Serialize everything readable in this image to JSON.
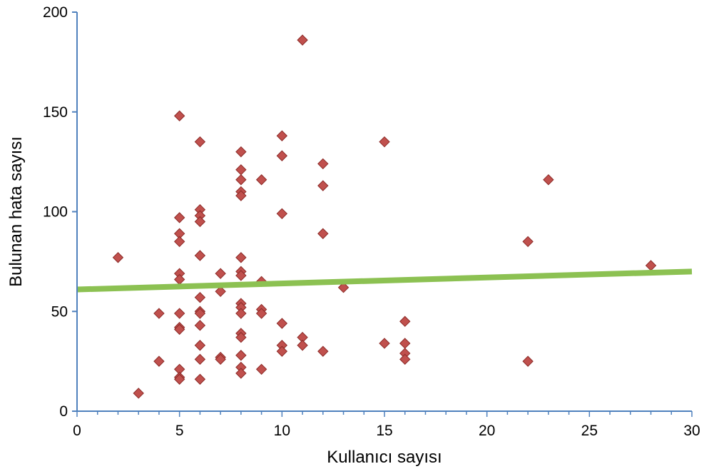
{
  "chart_data": {
    "type": "scatter",
    "title": "",
    "xlabel": "Kullanıcı sayısı",
    "ylabel": "Bulunan hata sayısı",
    "xlim": [
      0,
      30
    ],
    "ylim": [
      0,
      200
    ],
    "x_ticks": [
      0,
      5,
      10,
      15,
      20,
      25,
      30
    ],
    "y_ticks": [
      0,
      50,
      100,
      150,
      200
    ],
    "grid": false,
    "legend": "none",
    "marker": "diamond",
    "colors": {
      "axis": "#4f81bd",
      "marker_fill": "#c0504d",
      "marker_stroke": "#8b2a27",
      "trendline": "#8cc152"
    },
    "points": [
      [
        2,
        77
      ],
      [
        3,
        9
      ],
      [
        4,
        49
      ],
      [
        4,
        25
      ],
      [
        5,
        148
      ],
      [
        5,
        97
      ],
      [
        5,
        89
      ],
      [
        5,
        85
      ],
      [
        5,
        69
      ],
      [
        5,
        66
      ],
      [
        5,
        49
      ],
      [
        5,
        42
      ],
      [
        5,
        41
      ],
      [
        5,
        21
      ],
      [
        5,
        17
      ],
      [
        5,
        16
      ],
      [
        6,
        135
      ],
      [
        6,
        101
      ],
      [
        6,
        98
      ],
      [
        6,
        95
      ],
      [
        6,
        78
      ],
      [
        6,
        57
      ],
      [
        6,
        50
      ],
      [
        6,
        49
      ],
      [
        6,
        43
      ],
      [
        6,
        33
      ],
      [
        6,
        26
      ],
      [
        6,
        16
      ],
      [
        7,
        69
      ],
      [
        7,
        60
      ],
      [
        7,
        27
      ],
      [
        7,
        26
      ],
      [
        8,
        130
      ],
      [
        8,
        121
      ],
      [
        8,
        116
      ],
      [
        8,
        110
      ],
      [
        8,
        108
      ],
      [
        8,
        77
      ],
      [
        8,
        70
      ],
      [
        8,
        68
      ],
      [
        8,
        54
      ],
      [
        8,
        52
      ],
      [
        8,
        49
      ],
      [
        8,
        39
      ],
      [
        8,
        37
      ],
      [
        8,
        28
      ],
      [
        8,
        22
      ],
      [
        8,
        19
      ],
      [
        9,
        116
      ],
      [
        9,
        65
      ],
      [
        9,
        51
      ],
      [
        9,
        49
      ],
      [
        9,
        21
      ],
      [
        10,
        138
      ],
      [
        10,
        128
      ],
      [
        10,
        99
      ],
      [
        10,
        44
      ],
      [
        10,
        33
      ],
      [
        10,
        30
      ],
      [
        11,
        186
      ],
      [
        11,
        37
      ],
      [
        11,
        33
      ],
      [
        12,
        124
      ],
      [
        12,
        113
      ],
      [
        12,
        89
      ],
      [
        12,
        30
      ],
      [
        13,
        62
      ],
      [
        15,
        135
      ],
      [
        15,
        34
      ],
      [
        16,
        45
      ],
      [
        16,
        34
      ],
      [
        16,
        29
      ],
      [
        16,
        26
      ],
      [
        22,
        85
      ],
      [
        22,
        25
      ],
      [
        23,
        116
      ],
      [
        28,
        73
      ]
    ],
    "trendline": {
      "type": "linear",
      "x": [
        0,
        30
      ],
      "y": [
        61,
        70
      ]
    }
  }
}
